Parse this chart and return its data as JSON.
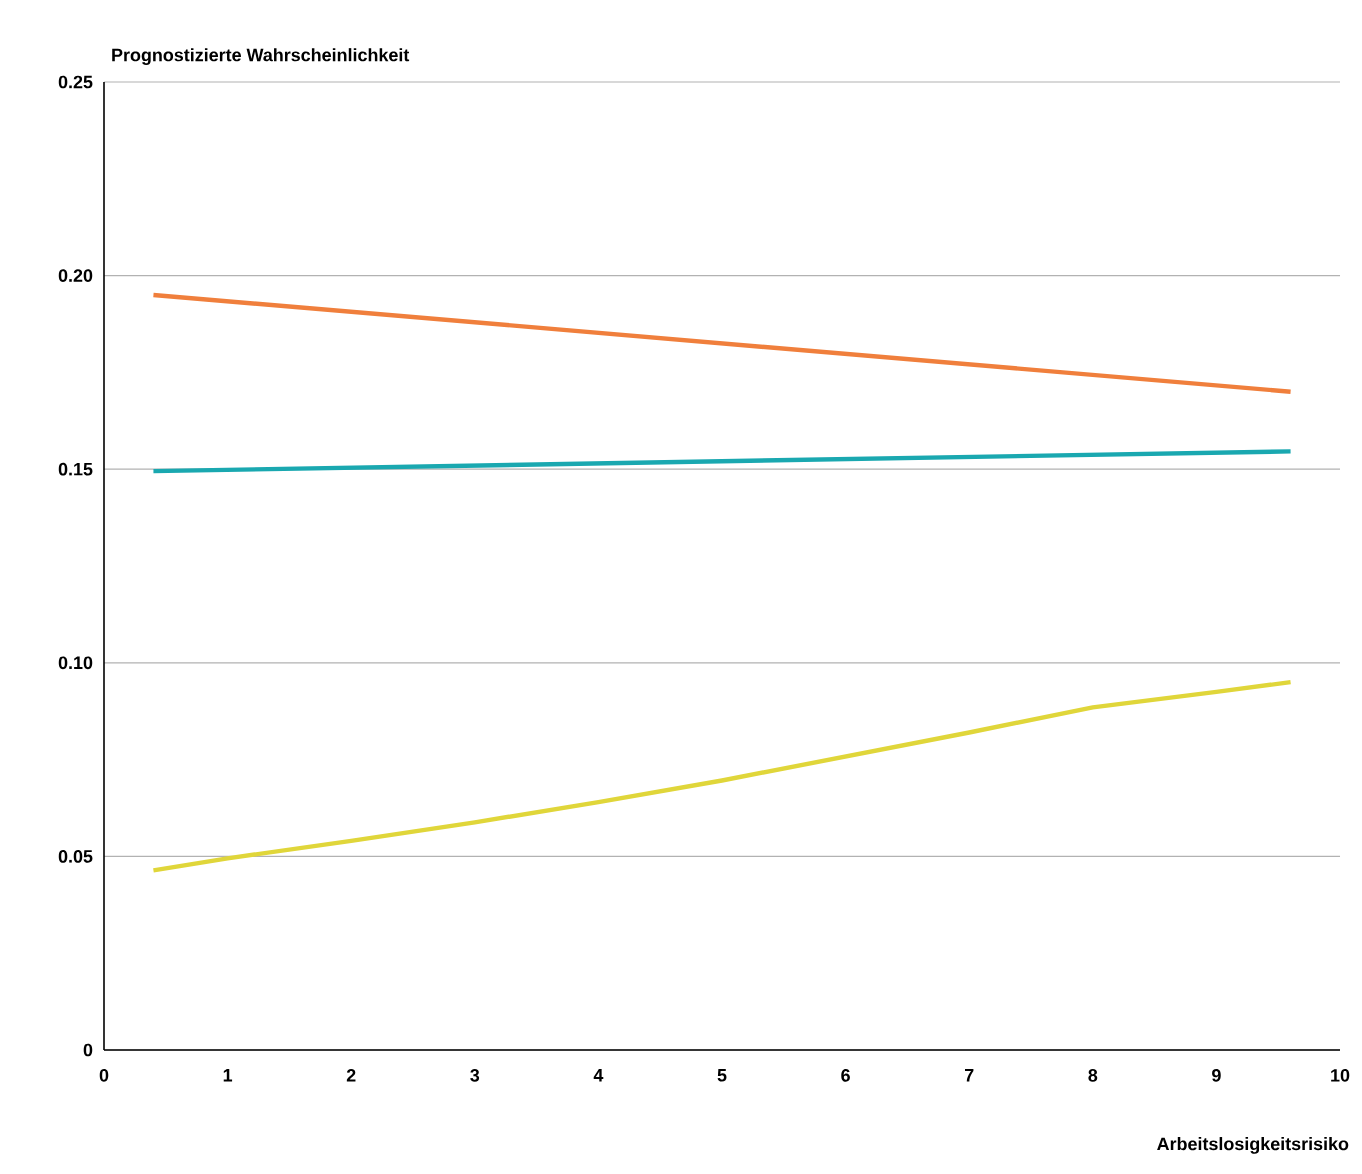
{
  "chart_data": {
    "type": "line",
    "ylabel": "Prognostizierte Wahrscheinlichkeit",
    "xlabel": "Arbeitslosigkeitsrisiko",
    "xlim": [
      0,
      10
    ],
    "xticks": [
      0,
      1,
      2,
      3,
      4,
      5,
      6,
      7,
      8,
      9,
      10
    ],
    "ylim": [
      0,
      0.25
    ],
    "yticks": [
      {
        "value": 0,
        "label": "0"
      },
      {
        "value": 0.05,
        "label": "0.05"
      },
      {
        "value": 0.1,
        "label": "0.10"
      },
      {
        "value": 0.15,
        "label": "0.15"
      },
      {
        "value": 0.2,
        "label": "0.20"
      },
      {
        "value": 0.25,
        "label": "0.25"
      }
    ],
    "grid": "y",
    "series": [
      {
        "color": "#f07f3c",
        "x": [
          0.4,
          9.6
        ],
        "values": [
          0.195,
          0.17
        ]
      },
      {
        "color": "#1aa8b0",
        "x": [
          0.4,
          9.6
        ],
        "values": [
          0.1495,
          0.1546
        ]
      },
      {
        "color": "#e0d63a",
        "x": [
          0.4,
          1,
          2,
          3,
          4,
          5,
          6,
          7,
          8,
          9,
          9.6
        ],
        "values": [
          0.0464,
          0.0495,
          0.054,
          0.0588,
          0.064,
          0.0696,
          0.0758,
          0.082,
          0.0885,
          0.0925,
          0.095
        ]
      }
    ]
  }
}
